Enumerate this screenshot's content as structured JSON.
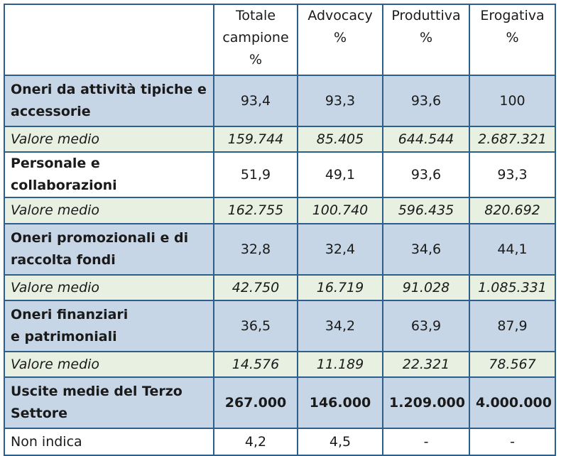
{
  "header": {
    "col1": [
      "Totale",
      "campione",
      "%"
    ],
    "col2": [
      "Advocacy",
      "%"
    ],
    "col3": [
      "Produttiva",
      "%"
    ],
    "col4": [
      "Erogativa",
      "%"
    ]
  },
  "rows": [
    {
      "label": [
        "Oneri da attività tipiche e",
        "accessorie"
      ],
      "values": [
        "93,4",
        "93,3",
        "93,6",
        "100"
      ]
    },
    {
      "label": [
        "Valore medio"
      ],
      "values": [
        "159.744",
        "85.405",
        "644.544",
        "2.687.321"
      ]
    },
    {
      "label": [
        "Personale e collaborazioni"
      ],
      "values": [
        "51,9",
        "49,1",
        "93,6",
        "93,3"
      ]
    },
    {
      "label": [
        "Valore medio"
      ],
      "values": [
        "162.755",
        "100.740",
        "596.435",
        "820.692"
      ]
    },
    {
      "label": [
        "Oneri promozionali e di",
        "raccolta fondi"
      ],
      "values": [
        "32,8",
        "32,4",
        "34,6",
        "44,1"
      ]
    },
    {
      "label": [
        "Valore medio"
      ],
      "values": [
        "42.750",
        "16.719",
        "91.028",
        "1.085.331"
      ]
    },
    {
      "label": [
        "Oneri finanziari",
        "e patrimoniali"
      ],
      "values": [
        "36,5",
        "34,2",
        "63,9",
        "87,9"
      ]
    },
    {
      "label": [
        "Valore medio"
      ],
      "values": [
        "14.576",
        "11.189",
        "22.321",
        "78.567"
      ]
    },
    {
      "label": [
        "Uscite medie del Terzo",
        "Settore"
      ],
      "values": [
        "267.000",
        "146.000",
        "1.209.000",
        "4.000.000"
      ]
    },
    {
      "label": [
        "Non indica"
      ],
      "values": [
        "4,2",
        "4,5",
        "-",
        "-"
      ]
    }
  ]
}
